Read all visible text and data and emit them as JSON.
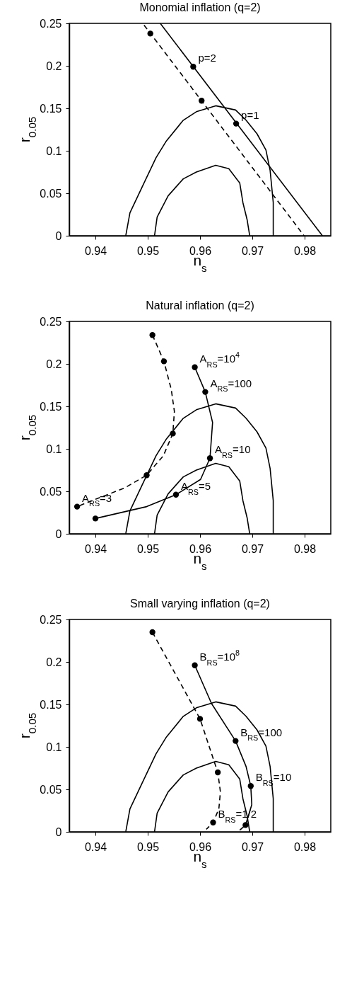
{
  "chart_data": [
    {
      "type": "line",
      "title": "Monomial inflation (q=2)",
      "xlabel": "n$_{s}$",
      "ylabel": "r$_{0.05}$",
      "xlim": [
        0.935,
        0.985
      ],
      "ylim": [
        0,
        0.25
      ],
      "xticks": [
        0.94,
        0.95,
        0.96,
        0.97,
        0.98
      ],
      "yticks": [
        0,
        0.05,
        0.1,
        0.15,
        0.2,
        0.25
      ],
      "series": [
        {
          "color": "#000000",
          "x": [
            0.9458,
            0.9466,
            0.9489,
            0.9516,
            0.9535,
            0.9568,
            0.9593,
            0.963,
            0.9668,
            0.9688,
            0.9709,
            0.9726,
            0.9734,
            0.974,
            0.974
          ],
          "values": [
            0,
            0.027,
            0.057,
            0.092,
            0.111,
            0.136,
            0.146,
            0.153,
            0.148,
            0.136,
            0.12,
            0.101,
            0.077,
            0.039,
            0
          ]
        },
        {
          "color": "#000000",
          "x": [
            0.9513,
            0.9518,
            0.9539,
            0.9568,
            0.9593,
            0.963,
            0.9655,
            0.9676,
            0.9682,
            0.969,
            0.9695
          ],
          "values": [
            0,
            0.022,
            0.047,
            0.067,
            0.075,
            0.083,
            0.079,
            0.062,
            0.039,
            0.019,
            0
          ]
        },
        {
          "color": "#000000",
          "x": [
            0.9524,
            0.9834
          ],
          "values": [
            0.25,
            0
          ]
        },
        {
          "color": "#000000",
          "line_style": "dashed",
          "x": [
            0.9493,
            0.9799
          ],
          "values": [
            0.248,
            0
          ]
        },
        {
          "type": "scatter",
          "marker": "circle",
          "color": "#000000",
          "x": [
            0.9587,
            0.9669,
            0.9505,
            0.9603
          ],
          "values": [
            0.199,
            0.132,
            0.238,
            0.159
          ]
        }
      ],
      "annotations": [
        {
          "text": "p=2",
          "x": 0.9587,
          "y": 0.199
        },
        {
          "text": "p=1",
          "x": 0.9669,
          "y": 0.132
        }
      ]
    },
    {
      "type": "line",
      "title": "Natural inflation (q=2)",
      "xlabel": "n$_{s}$",
      "ylabel": "r$_{0.05}$",
      "xlim": [
        0.935,
        0.985
      ],
      "ylim": [
        0,
        0.25
      ],
      "xticks": [
        0.94,
        0.95,
        0.96,
        0.97,
        0.98
      ],
      "yticks": [
        0,
        0.05,
        0.1,
        0.15,
        0.2,
        0.25
      ],
      "series": [
        {
          "color": "#000000",
          "x": [
            0.9458,
            0.9466,
            0.9489,
            0.9516,
            0.9535,
            0.9568,
            0.9593,
            0.963,
            0.9668,
            0.9688,
            0.9709,
            0.9726,
            0.9734,
            0.974,
            0.974
          ],
          "values": [
            0,
            0.027,
            0.057,
            0.092,
            0.111,
            0.136,
            0.146,
            0.153,
            0.148,
            0.136,
            0.12,
            0.101,
            0.077,
            0.039,
            0
          ]
        },
        {
          "color": "#000000",
          "x": [
            0.9513,
            0.9518,
            0.9539,
            0.9568,
            0.9593,
            0.963,
            0.9655,
            0.9676,
            0.9682,
            0.969,
            0.9695
          ],
          "values": [
            0,
            0.022,
            0.047,
            0.067,
            0.075,
            0.083,
            0.079,
            0.062,
            0.039,
            0.019,
            0
          ]
        },
        {
          "color": "#000000",
          "line_style": "dashed",
          "x": [
            0.9509,
            0.9531,
            0.9545,
            0.9551,
            0.9548,
            0.953,
            0.9498,
            0.9456,
            0.9406,
            0.9365
          ],
          "values": [
            0.234,
            0.203,
            0.17,
            0.144,
            0.118,
            0.092,
            0.069,
            0.054,
            0.042,
            0.032
          ]
        },
        {
          "color": "#000000",
          "x": [
            0.959,
            0.961,
            0.9624,
            0.9619,
            0.9601,
            0.9554,
            0.9498,
            0.94
          ],
          "values": [
            0.196,
            0.167,
            0.131,
            0.089,
            0.064,
            0.046,
            0.032,
            0.018
          ]
        },
        {
          "type": "scatter",
          "marker": "circle",
          "color": "#000000",
          "x": [
            0.9509,
            0.9531,
            0.9548,
            0.9498,
            0.9365,
            0.959,
            0.961,
            0.9619,
            0.9554,
            0.94
          ],
          "values": [
            0.234,
            0.203,
            0.118,
            0.069,
            0.032,
            0.196,
            0.167,
            0.089,
            0.046,
            0.018
          ]
        }
      ],
      "annotations": [
        {
          "text": "A$_{RS}$=10$^{4}$",
          "x": 0.959,
          "y": 0.196
        },
        {
          "text": "A$_{RS}$=100",
          "x": 0.961,
          "y": 0.167
        },
        {
          "text": "A$_{RS}$=10",
          "x": 0.9619,
          "y": 0.089
        },
        {
          "text": "A$_{RS}$=5",
          "x": 0.9554,
          "y": 0.046
        },
        {
          "text": "A$_{RS}$=3",
          "x": 0.9365,
          "y": 0.032
        }
      ]
    },
    {
      "type": "line",
      "title": "Small varying inflation (q=2)",
      "xlabel": "n$_{s}$",
      "ylabel": "r$_{0.05}$",
      "xlim": [
        0.935,
        0.985
      ],
      "ylim": [
        0,
        0.25
      ],
      "xticks": [
        0.94,
        0.95,
        0.96,
        0.97,
        0.98
      ],
      "yticks": [
        0,
        0.05,
        0.1,
        0.15,
        0.2,
        0.25
      ],
      "series": [
        {
          "color": "#000000",
          "x": [
            0.9458,
            0.9466,
            0.9489,
            0.9516,
            0.9535,
            0.9568,
            0.9593,
            0.963,
            0.9668,
            0.9688,
            0.9709,
            0.9726,
            0.9734,
            0.974,
            0.974
          ],
          "values": [
            0,
            0.027,
            0.057,
            0.092,
            0.111,
            0.136,
            0.146,
            0.153,
            0.148,
            0.136,
            0.12,
            0.101,
            0.077,
            0.039,
            0
          ]
        },
        {
          "color": "#000000",
          "x": [
            0.9513,
            0.9518,
            0.9539,
            0.9568,
            0.9593,
            0.963,
            0.9655,
            0.9676,
            0.9682,
            0.969,
            0.9695
          ],
          "values": [
            0,
            0.022,
            0.047,
            0.067,
            0.075,
            0.083,
            0.079,
            0.062,
            0.039,
            0.019,
            0
          ]
        },
        {
          "color": "#000000",
          "line_style": "dashed",
          "x": [
            0.9509,
            0.96,
            0.9634,
            0.9639,
            0.9636,
            0.9625,
            0.9612
          ],
          "values": [
            0.235,
            0.133,
            0.07,
            0.047,
            0.027,
            0.011,
            0.003
          ]
        },
        {
          "color": "#000000",
          "x": [
            0.959,
            0.9622,
            0.9668,
            0.9688,
            0.9697,
            0.9699,
            0.9687,
            0.9676
          ],
          "values": [
            0.196,
            0.151,
            0.107,
            0.077,
            0.054,
            0.032,
            0.008,
            0.002
          ]
        },
        {
          "type": "scatter",
          "marker": "circle",
          "color": "#000000",
          "x": [
            0.9509,
            0.96,
            0.9634,
            0.9625,
            0.959,
            0.9668,
            0.9697,
            0.9687
          ],
          "values": [
            0.235,
            0.133,
            0.07,
            0.011,
            0.196,
            0.107,
            0.054,
            0.008
          ]
        }
      ],
      "annotations": [
        {
          "text": "B$_{RS}$=10$^{8}$",
          "x": 0.959,
          "y": 0.196
        },
        {
          "text": "B$_{RS}$=100",
          "x": 0.9668,
          "y": 0.107
        },
        {
          "text": "B$_{RS}$=10",
          "x": 0.9697,
          "y": 0.054
        },
        {
          "text": "B$_{RS}$=1/2",
          "x": 0.9625,
          "y": 0.011
        }
      ]
    }
  ]
}
